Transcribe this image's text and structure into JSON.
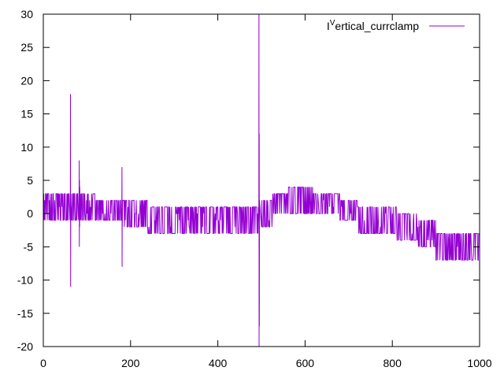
{
  "chart_data": {
    "type": "line",
    "title": "",
    "xlabel": "",
    "ylabel": "",
    "xlim": [
      0,
      1000
    ],
    "ylim": [
      -20,
      30
    ],
    "xticks": [
      0,
      200,
      400,
      600,
      800,
      1000
    ],
    "yticks": [
      -20,
      -15,
      -10,
      -5,
      0,
      5,
      10,
      15,
      20,
      25,
      30
    ],
    "grid": false,
    "legend_position": "top-right",
    "legend": {
      "label_prefix": "I",
      "label_superscript": "V",
      "label_rest": "ertical_currclamp"
    },
    "series": [
      {
        "name": "I^Vertical_currclamp",
        "color": "#9400d3",
        "segments": [
          {
            "x_start": 0,
            "x_end": 60,
            "low": -1,
            "high": 3
          },
          {
            "x_start": 60,
            "x_end": 120,
            "low": -1,
            "high": 3
          },
          {
            "x_start": 120,
            "x_end": 180,
            "low": -1,
            "high": 2
          },
          {
            "x_start": 180,
            "x_end": 240,
            "low": -2,
            "high": 2
          },
          {
            "x_start": 240,
            "x_end": 300,
            "low": -3,
            "high": 1
          },
          {
            "x_start": 300,
            "x_end": 420,
            "low": -3,
            "high": 1
          },
          {
            "x_start": 420,
            "x_end": 495,
            "low": -3,
            "high": 1
          },
          {
            "x_start": 500,
            "x_end": 525,
            "low": -2,
            "high": 2
          },
          {
            "x_start": 525,
            "x_end": 560,
            "low": 0,
            "high": 3
          },
          {
            "x_start": 560,
            "x_end": 620,
            "low": 0,
            "high": 4
          },
          {
            "x_start": 620,
            "x_end": 680,
            "low": 0,
            "high": 3
          },
          {
            "x_start": 680,
            "x_end": 720,
            "low": -1,
            "high": 2
          },
          {
            "x_start": 720,
            "x_end": 810,
            "low": -3,
            "high": 1
          },
          {
            "x_start": 810,
            "x_end": 860,
            "low": -4,
            "high": 0
          },
          {
            "x_start": 860,
            "x_end": 900,
            "low": -5,
            "high": -1
          },
          {
            "x_start": 900,
            "x_end": 1000,
            "low": -7,
            "high": -3
          }
        ],
        "spikes": [
          {
            "x": 62,
            "values": [
              2,
              18,
              -11,
              1
            ]
          },
          {
            "x": 82,
            "values": [
              3,
              8,
              -5,
              5,
              -2,
              4
            ]
          },
          {
            "x": 180,
            "values": [
              2,
              7,
              -8,
              1
            ]
          },
          {
            "x": 494,
            "values": [
              -1,
              30,
              -20,
              12,
              -17,
              2
            ]
          }
        ]
      }
    ]
  }
}
